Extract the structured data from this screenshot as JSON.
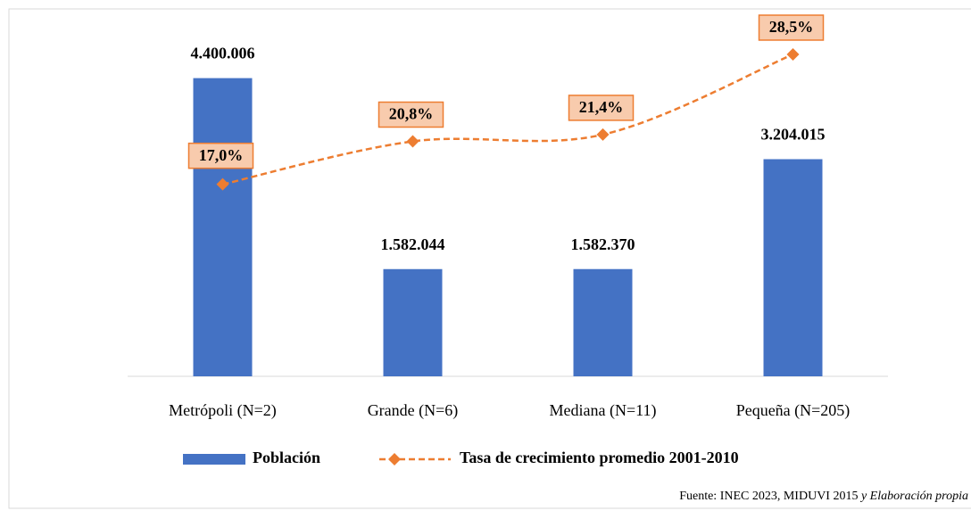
{
  "chart_data": {
    "type": "bar",
    "categories": [
      "Metrópoli (N=2)",
      "Grande (N=6)",
      "Mediana (N=11)",
      "Pequeña (N=205)"
    ],
    "series": [
      {
        "name": "Población",
        "type": "bar",
        "color": "#4472c4",
        "values": [
          4400006,
          1582044,
          1582370,
          3204015
        ],
        "value_labels": [
          "4.400.006",
          "1.582.044",
          "1.582.370",
          "3.204.015"
        ]
      },
      {
        "name": "Tasa de crecimiento promedio 2001-2010",
        "type": "line",
        "axis": "y2",
        "color": "#ed7d31",
        "values": [
          17.0,
          20.8,
          21.4,
          28.5
        ],
        "value_labels": [
          "17,0%",
          "20,8%",
          "21,4%",
          "28,5%"
        ]
      }
    ],
    "ylim": [
      0,
      5000000
    ],
    "y2lim": [
      0,
      30
    ],
    "legend": "bottom",
    "source": [
      "Fuente:  INEC 2023, MIDUVI 2015",
      "y Elaboración propia"
    ]
  }
}
